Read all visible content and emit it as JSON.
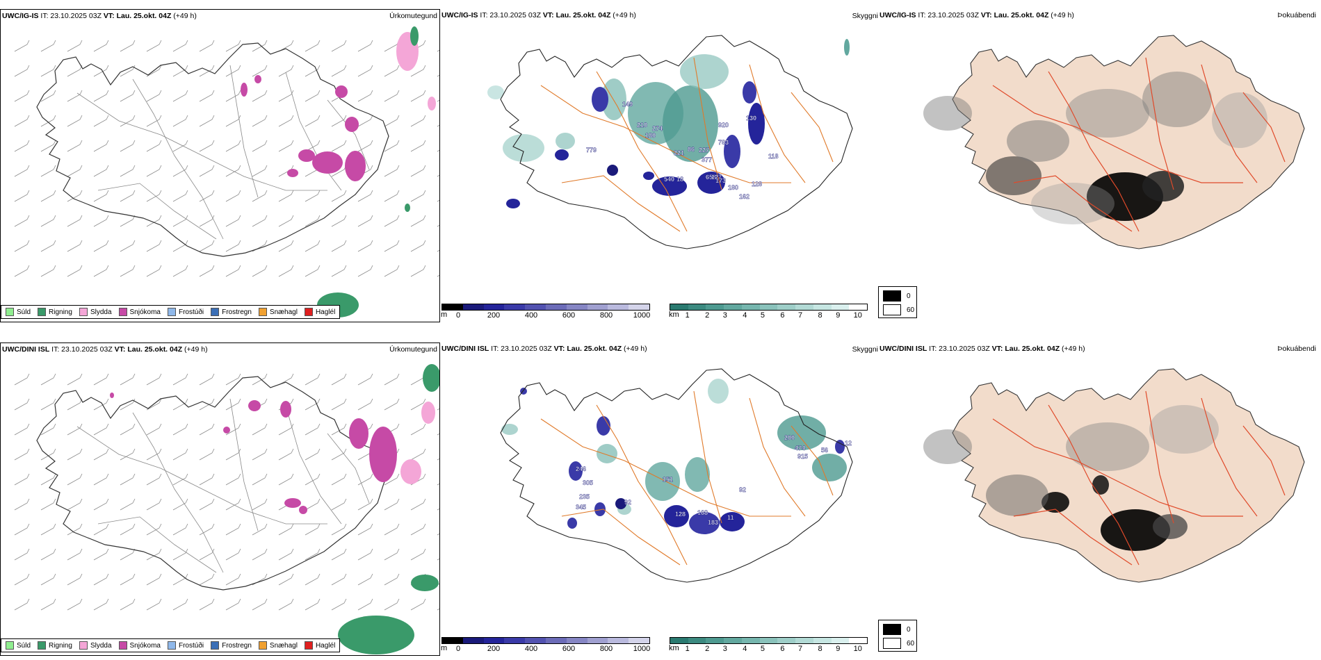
{
  "rows": [
    {
      "precip": {
        "model": "UWC/IG-IS",
        "it": "IT: 23.10.2025 03Z",
        "vt": "VT: Lau. 25.okt. 04Z",
        "lead": "(+49 h)",
        "title": "Úrkomutegund"
      },
      "sky": {
        "model": "UWC/IG-IS",
        "it": "IT: 23.10.2025 03Z",
        "vt": "VT: Lau. 25.okt. 04Z",
        "lead": "(+49 h)",
        "title": "Skyggni"
      },
      "fog": {
        "model": "UWC/IG-IS",
        "it": "IT: 23.10.2025 03Z",
        "vt": "VT: Lau. 25.okt. 04Z",
        "lead": "(+49 h)",
        "title": "Þokuábendi"
      },
      "labels": [
        "149",
        "210",
        "180",
        "274",
        "221",
        "86",
        "227",
        "377",
        "658",
        "783",
        "920",
        "130",
        "127",
        "18",
        "173",
        "180",
        "162",
        "128",
        "540",
        "779",
        "118"
      ]
    },
    {
      "precip": {
        "model": "UWC/DINI ISL",
        "it": "IT: 23.10.2025 03Z",
        "vt": "VT: Lau. 25.okt. 04Z",
        "lead": "(+49 h)",
        "title": "Úrkomutegund"
      },
      "sky": {
        "model": "UWC/DINI ISL",
        "it": "IT: 23.10.2025 03Z",
        "vt": "VT: Lau. 25.okt. 04Z",
        "lead": "(+49 h)",
        "title": "Skyggni"
      },
      "fog": {
        "model": "UWC/DINI ISL",
        "it": "IT: 23.10.2025 03Z",
        "vt": "VT: Lau. 25.okt. 04Z",
        "lead": "(+49 h)",
        "title": "Þokuábendi"
      },
      "labels": [
        "246",
        "305",
        "235",
        "345",
        "92",
        "151",
        "128",
        "168",
        "183",
        "11",
        "92",
        "200",
        "474",
        "915",
        "56",
        "12"
      ]
    }
  ],
  "precip_legend": [
    {
      "label": "Súld",
      "color": "#90ee90"
    },
    {
      "label": "Rigning",
      "color": "#3a9a6a"
    },
    {
      "label": "Slydda",
      "color": "#f4a6d7"
    },
    {
      "label": "Snjókoma",
      "color": "#c64aa6"
    },
    {
      "label": "Frostúði",
      "color": "#8fb8ea"
    },
    {
      "label": "Frostregn",
      "color": "#3b6fb6"
    },
    {
      "label": "Snæhagl",
      "color": "#f0a030"
    },
    {
      "label": "Haglél",
      "color": "#e02020"
    }
  ],
  "ceiling_bar": {
    "unit": "m",
    "ticks": [
      "0",
      "200",
      "400",
      "600",
      "800",
      "1000"
    ],
    "colors": [
      "#000000",
      "#1a1a7a",
      "#24249a",
      "#3a3aa8",
      "#5252b0",
      "#6c6cb8",
      "#8686c4",
      "#a0a0d0",
      "#babade",
      "#d4d4ea"
    ]
  },
  "vis_bar": {
    "unit": "km",
    "ticks": [
      "1",
      "2",
      "3",
      "4",
      "5",
      "6",
      "7",
      "8",
      "9",
      "10"
    ],
    "colors": [
      "#2a7a70",
      "#3c8a80",
      "#4e9a90",
      "#62a89f",
      "#76b6ae",
      "#8ac2bb",
      "#9ecec8",
      "#b2dad5",
      "#c6e6e2",
      "#daf0ee",
      "#ffffff"
    ]
  },
  "fog_legend": {
    "values": [
      "0",
      "60"
    ]
  }
}
